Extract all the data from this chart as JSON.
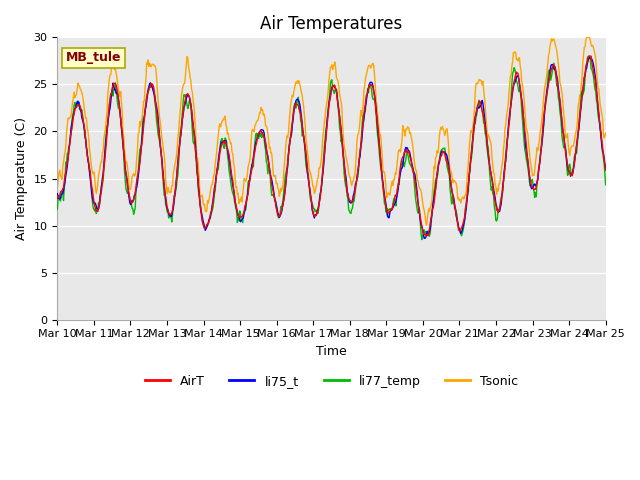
{
  "title": "Air Temperatures",
  "xlabel": "Time",
  "ylabel": "Air Temperature (C)",
  "ylim": [
    0,
    30
  ],
  "yticks": [
    0,
    5,
    10,
    15,
    20,
    25,
    30
  ],
  "xtick_labels": [
    "Mar 10",
    "Mar 11",
    "Mar 12",
    "Mar 13",
    "Mar 14",
    "Mar 15",
    "Mar 16",
    "Mar 17",
    "Mar 18",
    "Mar 19",
    "Mar 20",
    "Mar 21",
    "Mar 22",
    "Mar 23",
    "Mar 24",
    "Mar 25"
  ],
  "series_colors": {
    "AirT": "#ff0000",
    "li75_t": "#0000ff",
    "li77_temp": "#00bb00",
    "Tsonic": "#ffa500"
  },
  "annotation_text": "MB_tule",
  "annotation_color": "#880000",
  "annotation_bg": "#ffffcc",
  "plot_bg": "#e8e8e8",
  "grid_color": "#ffffff",
  "title_fontsize": 12,
  "axis_fontsize": 9,
  "tick_fontsize": 8,
  "legend_fontsize": 9
}
